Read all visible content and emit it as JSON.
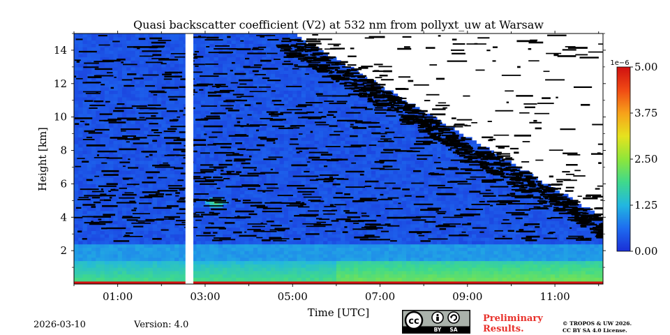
{
  "chart_data": {
    "type": "heatmap",
    "title": "Quasi backscatter coefficient (V2) at 532 nm from pollyxt_uw at Warsaw",
    "xlabel": "Time [UTC]",
    "ylabel": "Height [km]",
    "xlim_hours": [
      0.0,
      12.1
    ],
    "ylim_km": [
      0.0,
      15.0
    ],
    "x_ticks": [
      {
        "value": 1,
        "label": "01:00"
      },
      {
        "value": 3,
        "label": "03:00"
      },
      {
        "value": 5,
        "label": "05:00"
      },
      {
        "value": 7,
        "label": "07:00"
      },
      {
        "value": 9,
        "label": "09:00"
      },
      {
        "value": 11,
        "label": "11:00"
      }
    ],
    "y_ticks": [
      {
        "value": 2,
        "label": "2"
      },
      {
        "value": 4,
        "label": "4"
      },
      {
        "value": 6,
        "label": "6"
      },
      {
        "value": 8,
        "label": "8"
      },
      {
        "value": 10,
        "label": "10"
      },
      {
        "value": 12,
        "label": "12"
      },
      {
        "value": 14,
        "label": "14"
      }
    ],
    "colorbar": {
      "min": 0.0,
      "max": 5.0,
      "scale_label": "1e−6",
      "ticks": [
        {
          "value": 0.0,
          "label": "0.00"
        },
        {
          "value": 1.25,
          "label": "1.25"
        },
        {
          "value": 2.5,
          "label": "2.50"
        },
        {
          "value": 3.75,
          "label": "3.75"
        },
        {
          "value": 5.0,
          "label": "5.00"
        }
      ],
      "colors": [
        "#1a2fd6",
        "#1e6cf0",
        "#22b7e0",
        "#3fd98c",
        "#8ee63a",
        "#e6e21e",
        "#f7a11a",
        "#f04a14",
        "#d01010"
      ]
    },
    "data_gap_hours": [
      2.55,
      2.73
    ],
    "features": {
      "boundary_layer_top_km": 1.4,
      "surface_layer_value": 5.0,
      "blob_time_hours": 3.25,
      "blob_height_km": 4.9,
      "cloud_free_after_hours": 5.0
    }
  },
  "footer": {
    "date": "2026-03-10",
    "version": "Version: 4.0",
    "preliminary_line1": "Preliminary",
    "preliminary_line2": "Results.",
    "copyright_line1": "© TROPOS & UW 2026.",
    "copyright_line2": "CC BY SA 4.0 License.",
    "cc_label": "cc",
    "by_label": "BY",
    "sa_label": "SA"
  }
}
